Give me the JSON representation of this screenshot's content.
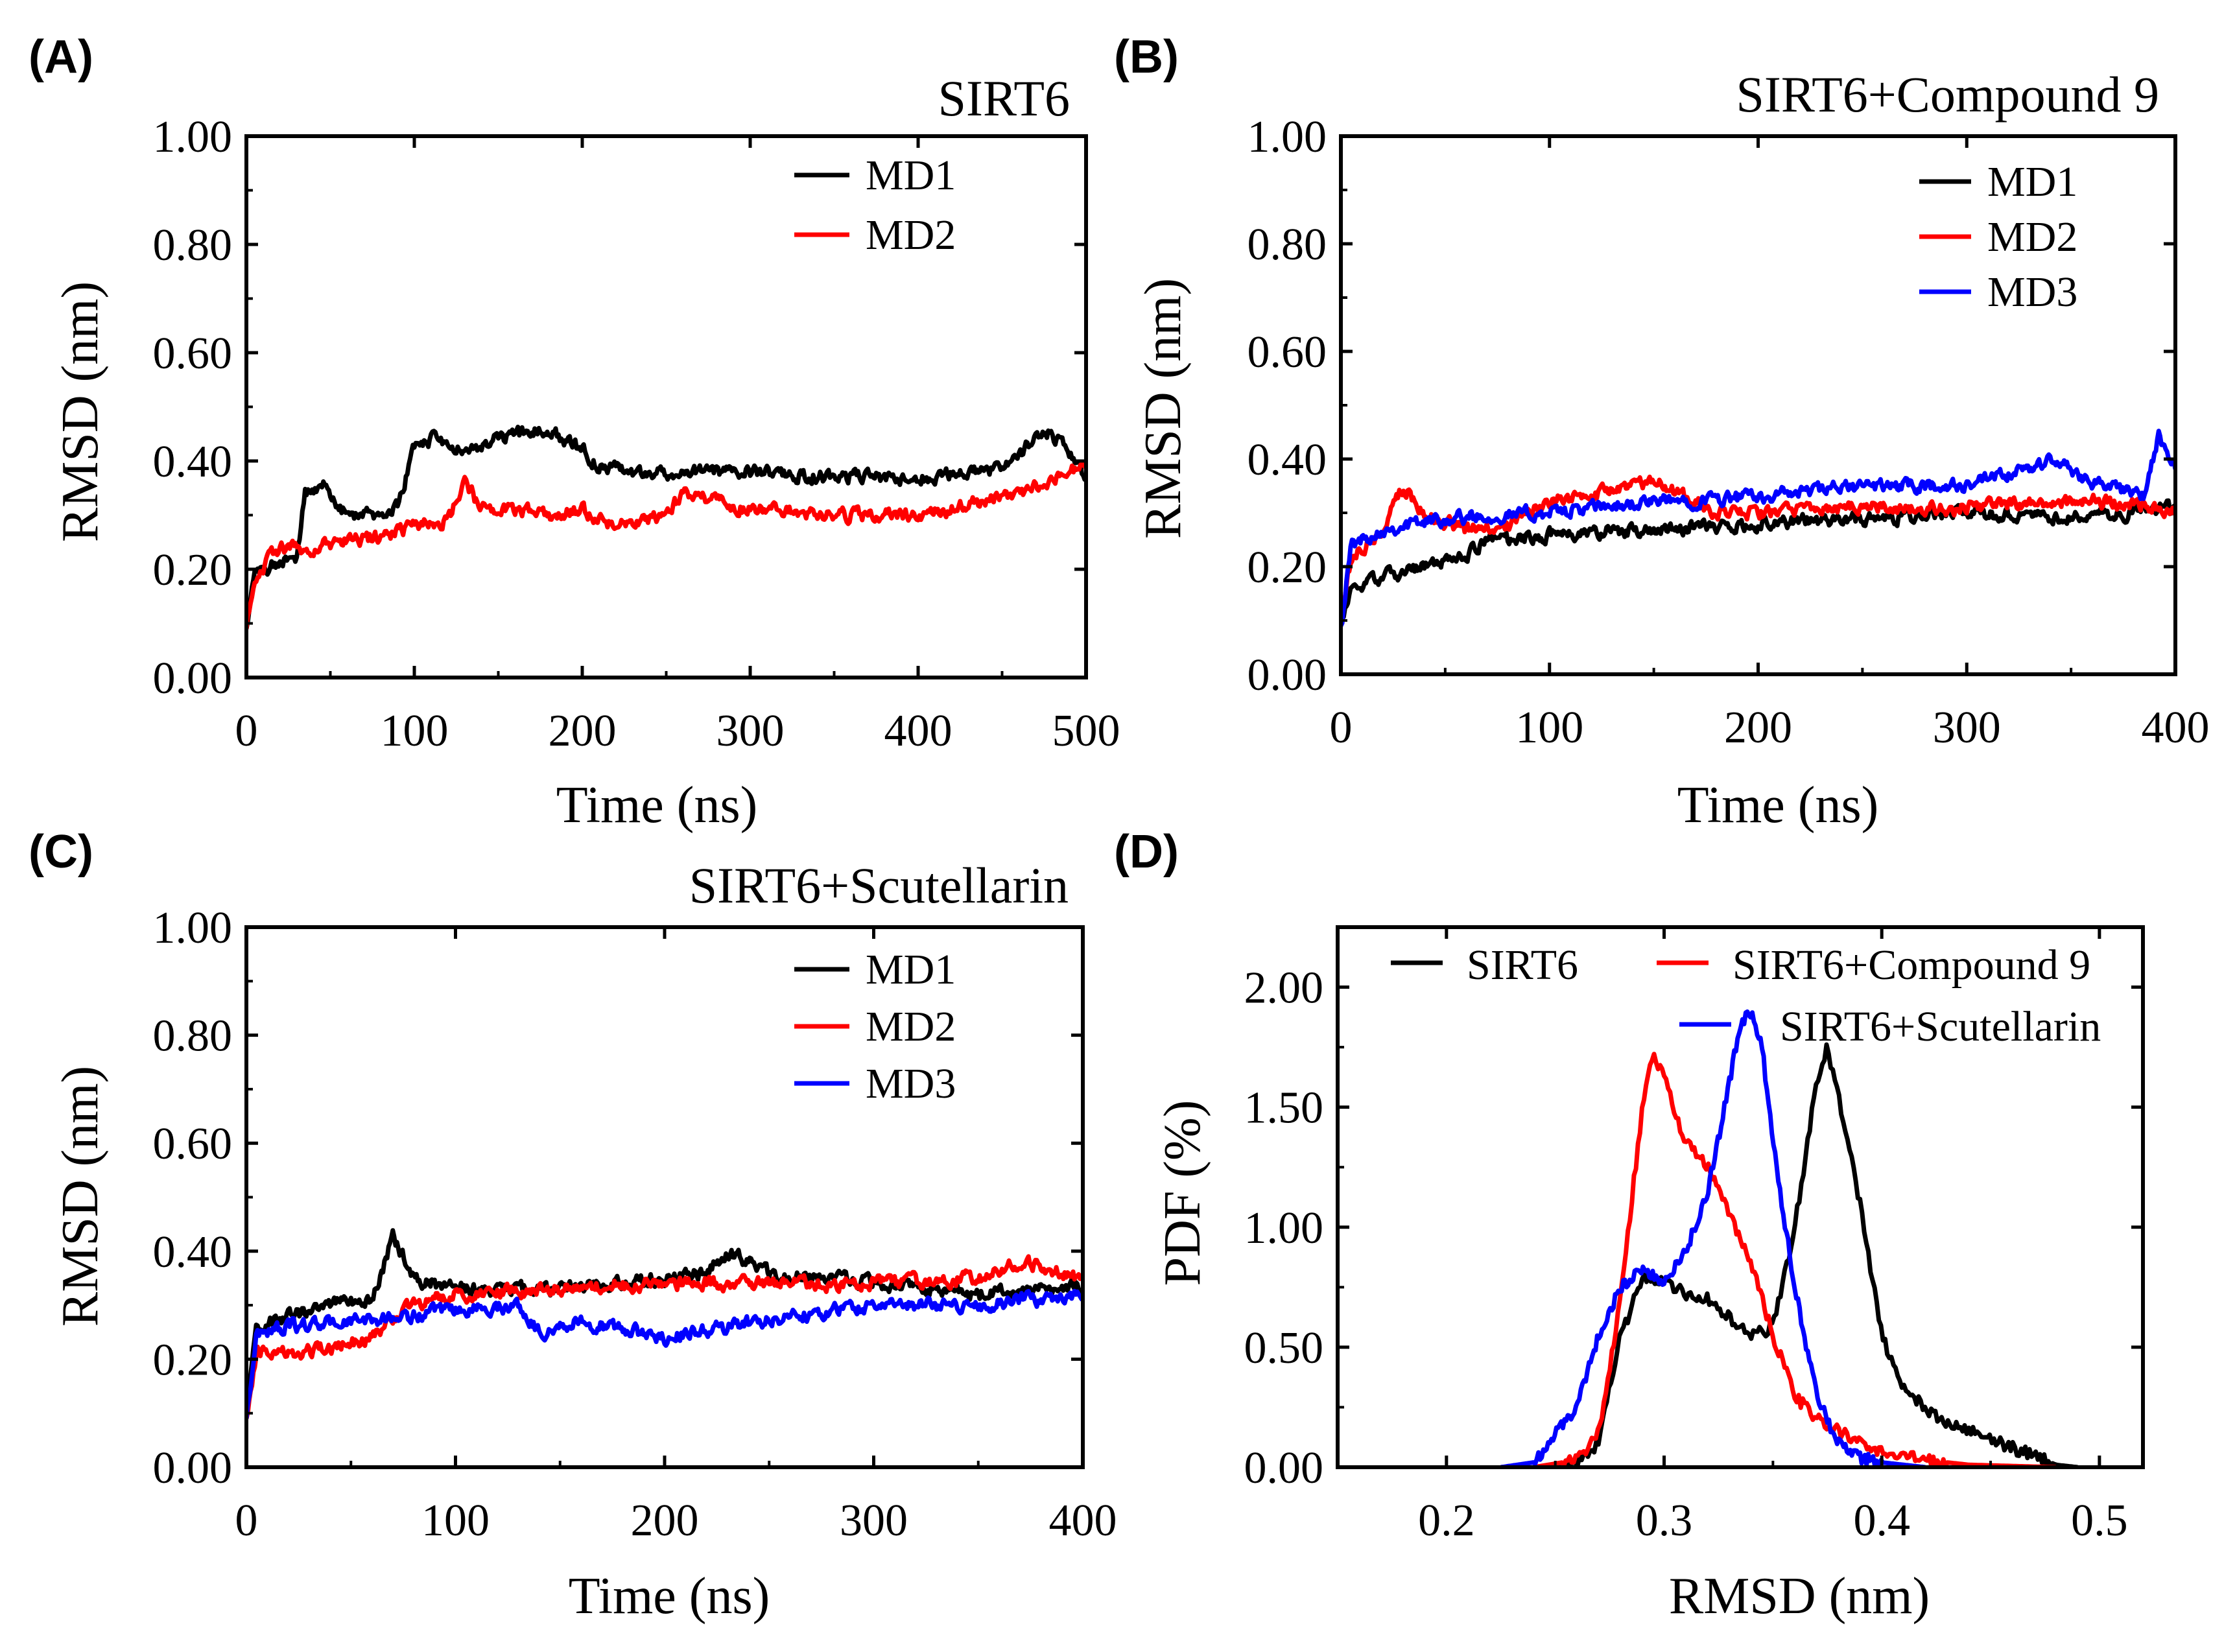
{
  "figure": {
    "colors": {
      "MD1": "#000000",
      "MD2": "#ff0000",
      "MD3": "#0000ff"
    }
  },
  "chart_data": [
    {
      "id": "A",
      "panel_label": "(A)",
      "type": "line",
      "title": "SIRT6",
      "xlabel": "Time (ns)",
      "ylabel": "RMSD (nm)",
      "xlim": [
        0,
        500
      ],
      "ylim": [
        0,
        1
      ],
      "xticks": [
        0,
        100,
        200,
        300,
        400,
        500
      ],
      "yticks": [
        0,
        0.2,
        0.4,
        0.6,
        0.8,
        1.0
      ],
      "xtick_labels": [
        "0",
        "100",
        "200",
        "300",
        "400",
        "500"
      ],
      "ytick_labels": [
        "0.00",
        "0.20",
        "0.40",
        "0.60",
        "0.80",
        "1.00"
      ],
      "legend_position": "top-right",
      "series": [
        {
          "name": "MD1",
          "color": "#000000",
          "x": [
            0,
            5,
            15,
            30,
            35,
            45,
            50,
            60,
            80,
            90,
            100,
            110,
            130,
            150,
            180,
            200,
            210,
            230,
            260,
            300,
            350,
            400,
            440,
            460,
            475,
            490,
            500
          ],
          "y": [
            0.09,
            0.19,
            0.21,
            0.22,
            0.34,
            0.36,
            0.34,
            0.3,
            0.3,
            0.32,
            0.42,
            0.44,
            0.42,
            0.44,
            0.46,
            0.42,
            0.39,
            0.38,
            0.38,
            0.38,
            0.37,
            0.37,
            0.38,
            0.41,
            0.46,
            0.42,
            0.37
          ]
        },
        {
          "name": "MD2",
          "color": "#ff0000",
          "x": [
            0,
            5,
            20,
            40,
            60,
            80,
            100,
            120,
            130,
            140,
            160,
            180,
            200,
            220,
            250,
            260,
            300,
            350,
            400,
            430,
            460,
            500
          ],
          "y": [
            0.09,
            0.19,
            0.24,
            0.24,
            0.25,
            0.26,
            0.28,
            0.29,
            0.36,
            0.31,
            0.31,
            0.3,
            0.31,
            0.28,
            0.3,
            0.34,
            0.31,
            0.3,
            0.3,
            0.32,
            0.34,
            0.39
          ]
        }
      ]
    },
    {
      "id": "B",
      "panel_label": "(B)",
      "type": "line",
      "title": "SIRT6+Compound 9",
      "xlabel": "Time (ns)",
      "ylabel": "RMSD (nm)",
      "xlim": [
        0,
        400
      ],
      "ylim": [
        0,
        1
      ],
      "xticks": [
        0,
        100,
        200,
        300,
        400
      ],
      "yticks": [
        0,
        0.2,
        0.4,
        0.6,
        0.8,
        1.0
      ],
      "xtick_labels": [
        "0",
        "100",
        "200",
        "300",
        "400"
      ],
      "ytick_labels": [
        "0.00",
        "0.20",
        "0.40",
        "0.60",
        "0.80",
        "1.00"
      ],
      "legend_position": "top-right",
      "series": [
        {
          "name": "MD1",
          "color": "#000000",
          "x": [
            0,
            5,
            20,
            40,
            60,
            70,
            80,
            100,
            150,
            200,
            250,
            300,
            350,
            400
          ],
          "y": [
            0.09,
            0.16,
            0.18,
            0.2,
            0.22,
            0.25,
            0.25,
            0.26,
            0.27,
            0.28,
            0.29,
            0.3,
            0.29,
            0.31
          ]
        },
        {
          "name": "MD2",
          "color": "#ff0000",
          "x": [
            0,
            5,
            20,
            30,
            40,
            60,
            80,
            100,
            130,
            150,
            180,
            200,
            250,
            300,
            340,
            370,
            400
          ],
          "y": [
            0.09,
            0.22,
            0.27,
            0.35,
            0.3,
            0.27,
            0.28,
            0.32,
            0.34,
            0.36,
            0.3,
            0.3,
            0.31,
            0.31,
            0.32,
            0.32,
            0.3
          ]
        },
        {
          "name": "MD3",
          "color": "#0000ff",
          "x": [
            0,
            5,
            20,
            50,
            100,
            150,
            200,
            250,
            300,
            330,
            340,
            360,
            385,
            392,
            400
          ],
          "y": [
            0.09,
            0.24,
            0.27,
            0.29,
            0.3,
            0.32,
            0.33,
            0.35,
            0.35,
            0.38,
            0.4,
            0.36,
            0.33,
            0.44,
            0.38
          ]
        }
      ]
    },
    {
      "id": "C",
      "panel_label": "(C)",
      "type": "line",
      "title": "SIRT6+Scutellarin",
      "xlabel": "Time (ns)",
      "ylabel": "RMSD (nm)",
      "xlim": [
        0,
        400
      ],
      "ylim": [
        0,
        1
      ],
      "xticks": [
        0,
        100,
        200,
        300,
        400
      ],
      "yticks": [
        0,
        0.2,
        0.4,
        0.6,
        0.8,
        1.0
      ],
      "xtick_labels": [
        "0",
        "100",
        "200",
        "300",
        "400"
      ],
      "ytick_labels": [
        "0.00",
        "0.20",
        "0.40",
        "0.60",
        "0.80",
        "1.00"
      ],
      "legend_position": "top-right",
      "series": [
        {
          "name": "MD1",
          "color": "#000000",
          "x": [
            0,
            5,
            20,
            40,
            60,
            65,
            70,
            80,
            100,
            150,
            200,
            220,
            230,
            250,
            300,
            350,
            400
          ],
          "y": [
            0.09,
            0.26,
            0.28,
            0.3,
            0.31,
            0.36,
            0.43,
            0.35,
            0.33,
            0.33,
            0.35,
            0.36,
            0.4,
            0.36,
            0.34,
            0.32,
            0.34
          ]
        },
        {
          "name": "MD2",
          "color": "#ff0000",
          "x": [
            0,
            5,
            20,
            40,
            60,
            80,
            100,
            150,
            200,
            250,
            300,
            350,
            370,
            400
          ],
          "y": [
            0.09,
            0.22,
            0.21,
            0.22,
            0.24,
            0.3,
            0.32,
            0.33,
            0.34,
            0.34,
            0.34,
            0.35,
            0.38,
            0.35
          ]
        },
        {
          "name": "MD3",
          "color": "#0000ff",
          "x": [
            0,
            5,
            20,
            50,
            80,
            100,
            130,
            140,
            160,
            200,
            230,
            260,
            300,
            350,
            400
          ],
          "y": [
            0.09,
            0.25,
            0.26,
            0.27,
            0.28,
            0.29,
            0.3,
            0.25,
            0.27,
            0.24,
            0.26,
            0.28,
            0.3,
            0.3,
            0.32
          ]
        }
      ]
    },
    {
      "id": "D",
      "panel_label": "(D)",
      "type": "line",
      "title": "",
      "xlabel": "RMSD (nm)",
      "ylabel": "PDF  (%)",
      "xlim": [
        0.15,
        0.52
      ],
      "ylim": [
        0,
        2.25
      ],
      "xticks": [
        0.2,
        0.3,
        0.4,
        0.5
      ],
      "yticks": [
        0,
        0.5,
        1.0,
        1.5,
        2.0
      ],
      "xtick_labels": [
        "0.2",
        "0.3",
        "0.4",
        "0.5"
      ],
      "ytick_labels": [
        "0.00",
        "0.50",
        "1.00",
        "1.50",
        "2.00"
      ],
      "legend_position": "top",
      "series": [
        {
          "name": "SIRT6",
          "color": "#000000",
          "x": [
            0.24,
            0.26,
            0.27,
            0.28,
            0.29,
            0.3,
            0.31,
            0.32,
            0.33,
            0.34,
            0.35,
            0.36,
            0.37,
            0.375,
            0.38,
            0.39,
            0.4,
            0.41,
            0.42,
            0.43,
            0.44,
            0.45,
            0.46,
            0.47,
            0.48,
            0.49
          ],
          "y": [
            0,
            0.02,
            0.1,
            0.55,
            0.78,
            0.78,
            0.72,
            0.7,
            0.62,
            0.55,
            0.58,
            1.0,
            1.6,
            1.75,
            1.55,
            1.1,
            0.55,
            0.32,
            0.25,
            0.18,
            0.15,
            0.12,
            0.08,
            0.05,
            0.01,
            0
          ]
        },
        {
          "name": "SIRT6+Compound 9",
          "color": "#ff0000",
          "x": [
            0.24,
            0.26,
            0.27,
            0.28,
            0.29,
            0.295,
            0.3,
            0.31,
            0.32,
            0.33,
            0.34,
            0.35,
            0.36,
            0.37,
            0.38,
            0.39,
            0.4,
            0.42,
            0.44,
            0.46,
            0.48
          ],
          "y": [
            0,
            0.03,
            0.15,
            0.7,
            1.5,
            1.72,
            1.62,
            1.35,
            1.25,
            1.05,
            0.85,
            0.55,
            0.3,
            0.2,
            0.15,
            0.1,
            0.06,
            0.03,
            0.01,
            0.005,
            0
          ]
        },
        {
          "name": "SIRT6+Scutellarin",
          "color": "#0000ff",
          "x": [
            0.225,
            0.24,
            0.26,
            0.27,
            0.28,
            0.29,
            0.3,
            0.31,
            0.32,
            0.33,
            0.335,
            0.34,
            0.345,
            0.35,
            0.36,
            0.37,
            0.38,
            0.39,
            0.4,
            0.42
          ],
          "y": [
            0,
            0.02,
            0.25,
            0.55,
            0.75,
            0.82,
            0.78,
            0.9,
            1.15,
            1.6,
            1.85,
            1.9,
            1.75,
            1.35,
            0.75,
            0.3,
            0.1,
            0.04,
            0.02,
            0
          ]
        }
      ]
    }
  ]
}
